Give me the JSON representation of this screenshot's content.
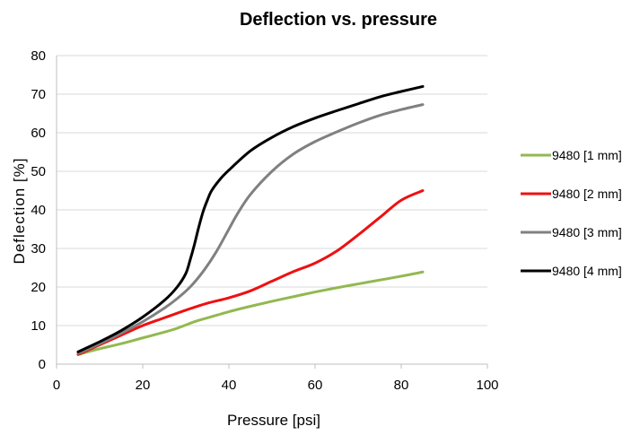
{
  "chart_data": {
    "type": "line",
    "title": "Deflection vs. pressure",
    "xlabel": "Pressure [psi]",
    "ylabel": "Deflection [%]",
    "xlim": [
      0,
      100
    ],
    "ylim": [
      0,
      80
    ],
    "x_ticks": [
      "0",
      "20",
      "40",
      "60",
      "80",
      "100"
    ],
    "y_ticks": [
      "0",
      "10",
      "20",
      "30",
      "40",
      "50",
      "60",
      "70",
      "80"
    ],
    "grid": "horizontal",
    "legend_position": "right",
    "series": [
      {
        "name": "9480 [1 mm]",
        "color": "#92b850",
        "x": [
          5,
          10,
          15,
          20,
          25,
          28,
          32,
          35,
          40,
          45,
          50,
          55,
          60,
          65,
          70,
          75,
          80,
          85
        ],
        "y": [
          2.5,
          4,
          5.3,
          6.8,
          8.3,
          9.3,
          11,
          12,
          13.6,
          15,
          16.3,
          17.5,
          18.7,
          19.8,
          20.8,
          21.8,
          22.8,
          23.9
        ]
      },
      {
        "name": "9480 [2 mm]",
        "color": "#ee1010",
        "x": [
          5,
          10,
          15,
          20,
          25,
          30,
          35,
          40,
          45,
          50,
          55,
          60,
          65,
          70,
          75,
          80,
          85
        ],
        "y": [
          2.5,
          5,
          7.5,
          10,
          12,
          14,
          15.8,
          17.2,
          19,
          21.5,
          24,
          26.2,
          29.3,
          33.5,
          38,
          42.5,
          45
        ]
      },
      {
        "name": "9480 [3 mm]",
        "color": "#808080",
        "x": [
          5,
          10,
          15,
          20,
          25,
          28,
          31,
          34,
          37,
          40,
          42,
          45,
          50,
          55,
          60,
          65,
          70,
          75,
          80,
          85
        ],
        "y": [
          2.8,
          5.3,
          8,
          11,
          14.5,
          17,
          20,
          24,
          29,
          35,
          39,
          44,
          50,
          54.5,
          57.7,
          60.2,
          62.5,
          64.5,
          66,
          67.3
        ]
      },
      {
        "name": "9480 [4 mm]",
        "color": "#000000",
        "x": [
          5,
          10,
          15,
          20,
          25,
          28,
          30,
          31,
          32,
          33,
          34,
          35,
          36,
          38,
          40,
          45,
          50,
          55,
          60,
          65,
          70,
          75,
          80,
          85
        ],
        "y": [
          3.2,
          5.8,
          8.7,
          12.2,
          16.5,
          20,
          23.5,
          27,
          31,
          35.5,
          39.5,
          42.5,
          45,
          48,
          50.3,
          55.3,
          58.8,
          61.6,
          63.8,
          65.7,
          67.5,
          69.3,
          70.7,
          72
        ]
      }
    ]
  }
}
